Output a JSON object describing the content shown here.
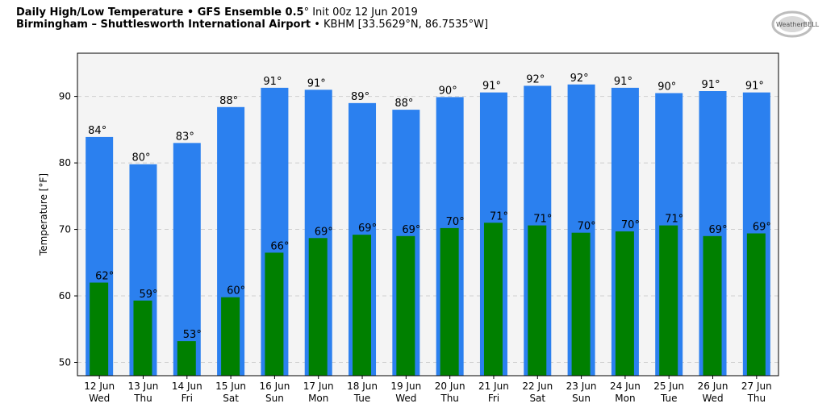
{
  "header": {
    "title_bold": "Daily High/Low Temperature • GFS Ensemble 0.5",
    "title_deg": "°",
    "title_rest": " Init 00z 12 Jun 2019",
    "subtitle_bold": "Birmingham – Shuttlesworth International Airport",
    "subtitle_rest": " • KBHM [33.5629°N, 86.7535°W]"
  },
  "logo": {
    "text": "WeatherBELL"
  },
  "colors": {
    "high": "#2b80ef",
    "low": "#008000",
    "plot_bg": "#f4f4f4"
  },
  "chart_data": {
    "type": "bar",
    "ylabel": "Temperature [°F]",
    "ylim": [
      48,
      96.5
    ],
    "yticks": [
      50,
      60,
      70,
      80,
      90
    ],
    "grid": true,
    "categories": [
      {
        "date": "12 Jun",
        "day": "Wed"
      },
      {
        "date": "13 Jun",
        "day": "Thu"
      },
      {
        "date": "14 Jun",
        "day": "Fri"
      },
      {
        "date": "15 Jun",
        "day": "Sat"
      },
      {
        "date": "16 Jun",
        "day": "Sun"
      },
      {
        "date": "17 Jun",
        "day": "Mon"
      },
      {
        "date": "18 Jun",
        "day": "Tue"
      },
      {
        "date": "19 Jun",
        "day": "Wed"
      },
      {
        "date": "20 Jun",
        "day": "Thu"
      },
      {
        "date": "21 Jun",
        "day": "Fri"
      },
      {
        "date": "22 Jun",
        "day": "Sat"
      },
      {
        "date": "23 Jun",
        "day": "Sun"
      },
      {
        "date": "24 Jun",
        "day": "Mon"
      },
      {
        "date": "25 Jun",
        "day": "Tue"
      },
      {
        "date": "26 Jun",
        "day": "Wed"
      },
      {
        "date": "27 Jun",
        "day": "Thu"
      }
    ],
    "series": [
      {
        "values": [
          83.9,
          79.8,
          83.0,
          88.4,
          91.3,
          91.0,
          89.0,
          88.0,
          89.9,
          90.6,
          91.6,
          91.8,
          91.3,
          90.5,
          90.8,
          90.6
        ],
        "labels": [
          "84°",
          "80°",
          "83°",
          "88°",
          "91°",
          "91°",
          "89°",
          "88°",
          "90°",
          "91°",
          "92°",
          "92°",
          "91°",
          "90°",
          "91°",
          "91°"
        ]
      },
      {
        "values": [
          62.0,
          59.3,
          53.2,
          59.8,
          66.5,
          68.7,
          69.2,
          69.0,
          70.2,
          71.0,
          70.6,
          69.5,
          69.7,
          70.6,
          69.0,
          69.4
        ],
        "labels": [
          "62°",
          "59°",
          "53°",
          "60°",
          "66°",
          "69°",
          "69°",
          "69°",
          "70°",
          "71°",
          "71°",
          "70°",
          "70°",
          "71°",
          "69°",
          "69°"
        ]
      }
    ]
  }
}
